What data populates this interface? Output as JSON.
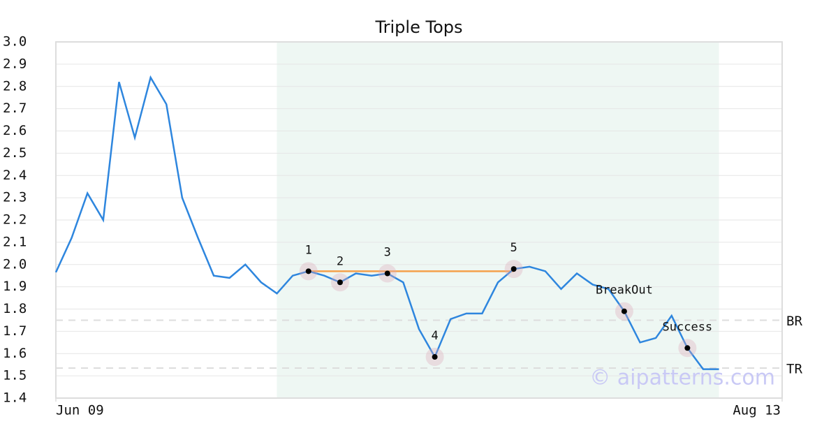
{
  "chart_data": {
    "type": "line",
    "title": "Triple Tops",
    "x": [
      0,
      1,
      2,
      3,
      4,
      5,
      6,
      7,
      8,
      9,
      10,
      11,
      12,
      13,
      14,
      15,
      16,
      17,
      18,
      19,
      20,
      21,
      22,
      23,
      24,
      25,
      26,
      27,
      28,
      29,
      30,
      31,
      32,
      33,
      34,
      35,
      36,
      37,
      38,
      39,
      40,
      41,
      42
    ],
    "series": [
      {
        "color": "#2e86de",
        "values": [
          1.965,
          2.12,
          2.32,
          2.2,
          2.82,
          2.57,
          2.84,
          2.72,
          2.3,
          2.12,
          1.95,
          1.94,
          2.0,
          1.92,
          1.87,
          1.95,
          1.97,
          1.95,
          1.92,
          1.96,
          1.95,
          1.96,
          1.92,
          1.71,
          1.585,
          1.755,
          1.78,
          1.78,
          1.92,
          1.98,
          1.99,
          1.97,
          1.89,
          1.96,
          1.91,
          1.89,
          1.79,
          1.65,
          1.67,
          1.77,
          1.625,
          1.53,
          1.53
        ]
      }
    ],
    "xlim": [
      0,
      46
    ],
    "xticks": [
      {
        "value": 0,
        "label": "Jun 09"
      },
      {
        "value": 46,
        "label": "Aug 13"
      }
    ],
    "ylim": [
      1.4,
      3.0
    ],
    "yticks": [
      1.4,
      1.5,
      1.6,
      1.7,
      1.8,
      1.9,
      {
        "value": 2,
        "label": "2.0"
      },
      2.1,
      2.2,
      2.3,
      2.4,
      2.5,
      2.6,
      2.7,
      2.8,
      2.9,
      {
        "value": 3,
        "label": "3.0"
      }
    ],
    "grid": true,
    "highlight_range": [
      14,
      42
    ],
    "highlight_color": "#eef7f3",
    "resistance": {
      "value": 1.97,
      "x": [
        16,
        29
      ],
      "color": "#f5a04a"
    },
    "reference_lines": [
      {
        "label": "BR",
        "value": 1.75
      },
      {
        "label": "TR",
        "value": 1.535
      }
    ],
    "annotations": [
      {
        "text": "1",
        "index": 16
      },
      {
        "text": "2",
        "index": 18
      },
      {
        "text": "3",
        "index": 21
      },
      {
        "text": "4",
        "index": 24
      },
      {
        "text": "5",
        "index": 29
      },
      {
        "text": "BreakOut",
        "index": 36
      },
      {
        "text": "Success",
        "index": 40
      }
    ],
    "watermark": "© aipatterns.com"
  }
}
